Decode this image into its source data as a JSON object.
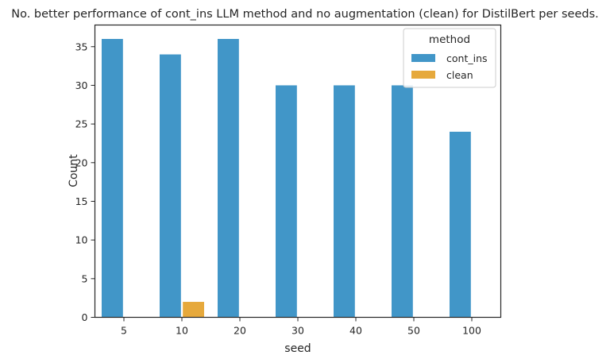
{
  "chart_data": {
    "type": "bar",
    "title": "No. better performance of cont_ins LLM method and no augmentation (clean) for DistilBert per seeds.",
    "xlabel": "seed",
    "ylabel": "Count",
    "categories": [
      "5",
      "10",
      "20",
      "30",
      "40",
      "50",
      "100"
    ],
    "series": [
      {
        "name": "cont_ins",
        "values": [
          36,
          34,
          36,
          30,
          30,
          30,
          24
        ],
        "color": "#4196c8"
      },
      {
        "name": "clean",
        "values": [
          0,
          2,
          0,
          0,
          0,
          0,
          0
        ],
        "color": "#e6a93c"
      }
    ],
    "ylim": [
      0,
      37.8
    ],
    "yticks": [
      0,
      5,
      10,
      15,
      20,
      25,
      30,
      35
    ],
    "grid": false,
    "legend": {
      "title": "method",
      "placement": "top-right"
    }
  }
}
